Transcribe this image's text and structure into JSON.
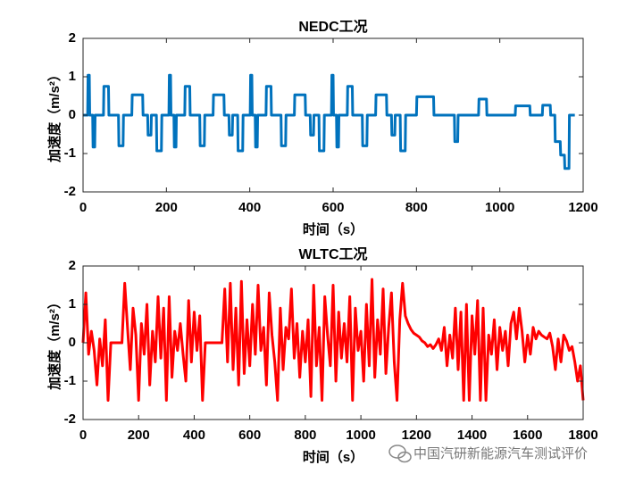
{
  "chart_data": [
    {
      "type": "line",
      "title": "NEDC工况",
      "xlabel": "时间（s）",
      "ylabel": "加速度（m/s²）",
      "x": [
        0,
        11,
        12,
        15,
        16,
        23,
        24,
        28,
        29,
        49,
        50,
        61,
        62,
        85,
        86,
        96,
        97,
        117,
        118,
        143,
        144,
        155,
        156,
        163,
        164,
        176,
        177,
        188,
        189,
        206,
        207,
        210,
        211,
        218,
        219,
        223,
        224,
        244,
        245,
        256,
        257,
        280,
        281,
        291,
        292,
        312,
        313,
        338,
        339,
        350,
        351,
        358,
        359,
        371,
        372,
        383,
        384,
        401,
        402,
        405,
        406,
        413,
        414,
        418,
        419,
        439,
        440,
        451,
        452,
        475,
        476,
        486,
        487,
        507,
        508,
        533,
        534,
        545,
        546,
        553,
        554,
        566,
        567,
        578,
        579,
        596,
        597,
        600,
        601,
        608,
        609,
        613,
        614,
        634,
        635,
        646,
        647,
        670,
        671,
        681,
        682,
        702,
        703,
        728,
        729,
        740,
        741,
        748,
        749,
        761,
        762,
        773,
        774,
        800,
        801,
        841,
        842,
        891,
        892,
        899,
        900,
        949,
        950,
        968,
        969,
        1037,
        1038,
        1072,
        1073,
        1102,
        1103,
        1121,
        1122,
        1132,
        1133,
        1145,
        1146,
        1155,
        1156,
        1166,
        1167,
        1180
      ],
      "series": [
        {
          "color": "#0072BD",
          "values": [
            0,
            0,
            1.04,
            1.04,
            0,
            0,
            -0.83,
            -0.83,
            0,
            0,
            0.75,
            0.75,
            0,
            0,
            -0.8,
            -0.8,
            0,
            0,
            0.53,
            0.53,
            0,
            0,
            -0.52,
            -0.52,
            0,
            0,
            -0.93,
            -0.93,
            0,
            0,
            1.04,
            1.04,
            0,
            0,
            -0.83,
            -0.83,
            0,
            0,
            0.75,
            0.75,
            0,
            0,
            -0.8,
            -0.8,
            0,
            0,
            0.53,
            0.53,
            0,
            0,
            -0.52,
            -0.52,
            0,
            0,
            -0.93,
            -0.93,
            0,
            0,
            1.04,
            1.04,
            0,
            0,
            -0.83,
            -0.83,
            0,
            0,
            0.75,
            0.75,
            0,
            0,
            -0.8,
            -0.8,
            0,
            0,
            0.53,
            0.53,
            0,
            0,
            -0.52,
            -0.52,
            0,
            0,
            -0.93,
            -0.93,
            0,
            0,
            1.04,
            1.04,
            0,
            0,
            -0.83,
            -0.83,
            0,
            0,
            0.75,
            0.75,
            0,
            0,
            -0.8,
            -0.8,
            0,
            0,
            0.53,
            0.53,
            0,
            0,
            -0.52,
            -0.52,
            0,
            0,
            -0.93,
            -0.93,
            0,
            0,
            0.48,
            0.48,
            0,
            0,
            -0.69,
            -0.69,
            0,
            0,
            0.42,
            0.42,
            0,
            0,
            0.24,
            0.24,
            0,
            0,
            0.26,
            0.26,
            0,
            0,
            -0.69,
            -0.69,
            -1.04,
            -1.04,
            -1.39,
            -1.39,
            0,
            0
          ]
        }
      ],
      "xlim": [
        0,
        1200
      ],
      "xticks": [
        0,
        200,
        400,
        600,
        800,
        1000,
        1200
      ],
      "ylim": [
        -2,
        2
      ],
      "yticks": [
        -2,
        -1,
        0,
        1,
        2
      ]
    },
    {
      "type": "line",
      "title": "WLTC工况",
      "xlabel": "时间（s）",
      "ylabel": "加速度（m/s²）",
      "x": [
        0,
        10,
        20,
        30,
        40,
        50,
        60,
        70,
        80,
        90,
        100,
        110,
        120,
        130,
        140,
        150,
        160,
        170,
        180,
        190,
        200,
        210,
        220,
        230,
        240,
        250,
        260,
        270,
        280,
        290,
        300,
        310,
        320,
        330,
        340,
        350,
        360,
        370,
        380,
        390,
        400,
        410,
        420,
        430,
        440,
        450,
        460,
        470,
        480,
        490,
        500,
        510,
        520,
        530,
        540,
        550,
        560,
        570,
        580,
        590,
        600,
        610,
        620,
        630,
        640,
        650,
        660,
        670,
        680,
        690,
        700,
        710,
        720,
        730,
        740,
        750,
        760,
        770,
        780,
        790,
        800,
        810,
        820,
        830,
        840,
        850,
        860,
        870,
        880,
        890,
        900,
        910,
        920,
        930,
        940,
        950,
        960,
        970,
        980,
        990,
        1000,
        1010,
        1020,
        1030,
        1040,
        1050,
        1060,
        1070,
        1080,
        1090,
        1100,
        1110,
        1120,
        1130,
        1140,
        1150,
        1160,
        1170,
        1180,
        1190,
        1200,
        1210,
        1220,
        1230,
        1240,
        1250,
        1260,
        1270,
        1280,
        1290,
        1300,
        1310,
        1320,
        1330,
        1340,
        1350,
        1360,
        1370,
        1380,
        1390,
        1400,
        1410,
        1420,
        1430,
        1440,
        1450,
        1460,
        1470,
        1480,
        1490,
        1500,
        1510,
        1520,
        1530,
        1540,
        1550,
        1560,
        1570,
        1580,
        1590,
        1600,
        1610,
        1620,
        1630,
        1640,
        1650,
        1660,
        1670,
        1680,
        1690,
        1700,
        1710,
        1720,
        1730,
        1740,
        1750,
        1760,
        1770,
        1780,
        1790,
        1800
      ],
      "series": [
        {
          "color": "#FF0000",
          "values": [
            0,
            1.3,
            -0.3,
            0.3,
            -0.2,
            -1.1,
            0.1,
            -0.6,
            0.6,
            -1.5,
            0,
            0,
            0,
            0,
            0,
            1.55,
            0.4,
            -0.7,
            0.9,
            0.2,
            -1.5,
            0.5,
            -0.3,
            1.0,
            -1.1,
            0.3,
            -0.5,
            1.2,
            -0.4,
            0.9,
            -1.5,
            1.2,
            -0.9,
            0.3,
            -0.2,
            0.5,
            -0.3,
            -1.0,
            1.1,
            -0.5,
            0.8,
            -0.2,
            0.7,
            -1.5,
            0,
            0,
            0,
            0,
            0,
            0,
            0,
            1.4,
            -0.5,
            1.55,
            -0.7,
            0.9,
            -1.1,
            1.6,
            -0.8,
            0.6,
            -0.6,
            1.0,
            -0.3,
            1.5,
            -0.2,
            0.4,
            -1.1,
            1.3,
            0.2,
            -0.5,
            -1.5,
            0.9,
            -0.7,
            0.4,
            0.1,
            1.4,
            -0.4,
            0.5,
            -0.9,
            0.3,
            -0.5,
            0.6,
            -1.4,
            1.5,
            -0.6,
            0.4,
            -1.5,
            1.2,
            0.2,
            -0.6,
            1.5,
            -1.0,
            0.8,
            -0.4,
            0.5,
            -0.5,
            1.2,
            -1.5,
            0.9,
            -0.2,
            0.3,
            -1.0,
            1.0,
            -0.6,
            1.65,
            -0.9,
            0.6,
            -0.3,
            1.4,
            -0.8,
            0.4,
            1.3,
            -0.5,
            -1.5,
            0.6,
            1.55,
            0.7,
            0.5,
            0.35,
            0.25,
            0.2,
            0.15,
            0.05,
            0,
            -0.1,
            -0.05,
            -0.15,
            -0.05,
            0.1,
            -0.2,
            0.4,
            -0.6,
            0.2,
            -0.4,
            0.9,
            -0.7,
            0.8,
            -1.5,
            1.0,
            -1.5,
            0.7,
            -0.3,
            1.1,
            -1.5,
            0.9,
            -1.5,
            0.2,
            -0.3,
            0.6,
            -0.7,
            0.4,
            -0.2,
            0.3,
            -0.6,
            0.5,
            0.8,
            0.1,
            0.9,
            0.3,
            -0.5,
            0.2,
            -0.3,
            0.4,
            0.1,
            0.3,
            0.2,
            0.15,
            0.1,
            0.25,
            -0.1,
            -0.7,
            0.1,
            -0.5,
            0.2,
            0.05,
            -0.2,
            -0.1,
            -0.5,
            -1.0,
            -0.6,
            -1.5
          ]
        }
      ],
      "xlim": [
        0,
        1800
      ],
      "xticks": [
        0,
        200,
        400,
        600,
        800,
        1000,
        1200,
        1400,
        1600,
        1800
      ],
      "ylim": [
        -2,
        2
      ],
      "yticks": [
        -2,
        -1,
        0,
        1,
        2
      ]
    }
  ],
  "watermark": "中国汽研新能源汽车测试评价"
}
